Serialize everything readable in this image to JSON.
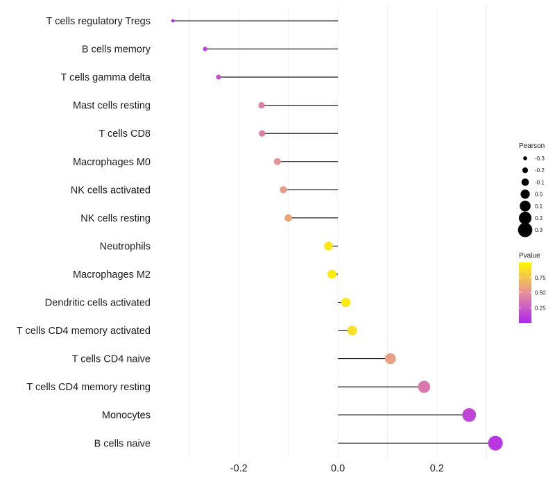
{
  "chart_data": {
    "type": "lollipop",
    "title": "",
    "xlabel": "",
    "ylabel": "",
    "xlim": [
      -0.36,
      0.35
    ],
    "x_ticks": [
      -0.2,
      0.0,
      0.2
    ],
    "x_tick_labels": [
      "-0.2",
      "0.0",
      "0.2"
    ],
    "grid": true,
    "points": [
      {
        "label": "T cells regulatory  Tregs",
        "pearson": -0.333,
        "pvalue": 0.05
      },
      {
        "label": "B cells memory",
        "pearson": -0.268,
        "pvalue": 0.15
      },
      {
        "label": "T cells gamma delta",
        "pearson": -0.241,
        "pvalue": 0.2
      },
      {
        "label": "Mast cells resting",
        "pearson": -0.154,
        "pvalue": 0.42
      },
      {
        "label": "T cells CD8",
        "pearson": -0.153,
        "pvalue": 0.42
      },
      {
        "label": "Macrophages M0",
        "pearson": -0.122,
        "pvalue": 0.52
      },
      {
        "label": "NK cells activated",
        "pearson": -0.11,
        "pvalue": 0.56
      },
      {
        "label": "NK cells resting",
        "pearson": -0.1,
        "pvalue": 0.6
      },
      {
        "label": "Neutrophils",
        "pearson": -0.019,
        "pvalue": 0.92
      },
      {
        "label": "Macrophages M2",
        "pearson": -0.012,
        "pvalue": 0.95
      },
      {
        "label": "Dendritic cells activated",
        "pearson": 0.016,
        "pvalue": 0.93
      },
      {
        "label": "T cells CD4 memory activated",
        "pearson": 0.029,
        "pvalue": 0.88
      },
      {
        "label": "T cells CD4 naive",
        "pearson": 0.106,
        "pvalue": 0.58
      },
      {
        "label": "T cells CD4 memory resting",
        "pearson": 0.174,
        "pvalue": 0.38
      },
      {
        "label": "Monocytes",
        "pearson": 0.265,
        "pvalue": 0.15
      },
      {
        "label": "B cells naive",
        "pearson": 0.318,
        "pvalue": 0.08
      }
    ],
    "legend_size": {
      "title": "Pearson",
      "values": [
        -0.3,
        -0.2,
        -0.1,
        0.0,
        0.1,
        0.2,
        0.3
      ],
      "labels": [
        "-0.3",
        "-0.2",
        "-0.1",
        "0.0",
        "0.1",
        "0.2",
        "0.3"
      ]
    },
    "legend_color": {
      "title": "Pvalue",
      "range": [
        0.0,
        1.0
      ],
      "ticks": [
        0.25,
        0.5,
        0.75
      ],
      "tick_labels": [
        "0.25",
        "0.50",
        "0.75"
      ],
      "low_color": "#b026ee",
      "mid_color": "#e6919a",
      "high_color": "#fff700"
    },
    "colors": {
      "stem": "#000000",
      "grid": "#ececec"
    }
  }
}
